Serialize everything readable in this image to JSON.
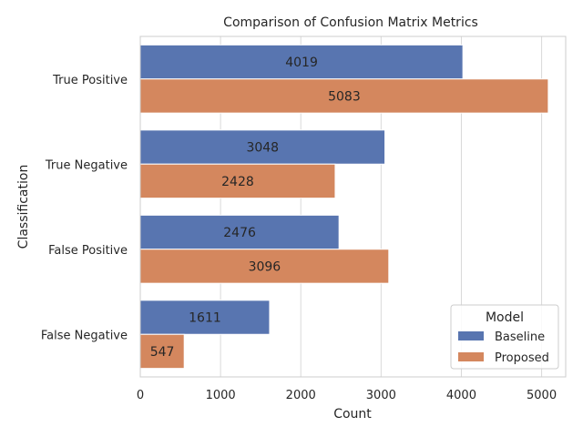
{
  "chart_data": {
    "type": "bar",
    "orientation": "horizontal",
    "title": "Comparison of Confusion Matrix Metrics",
    "xlabel": "Count",
    "ylabel": "Classification",
    "categories": [
      "True Positive",
      "True Negative",
      "False Positive",
      "False Negative"
    ],
    "series": [
      {
        "name": "Baseline",
        "color": "#5875b0",
        "values": [
          4019,
          3048,
          2476,
          1611
        ]
      },
      {
        "name": "Proposed",
        "color": "#d4875e",
        "values": [
          5083,
          2428,
          3096,
          547
        ]
      }
    ],
    "xlim": [
      0,
      5300
    ],
    "xticks": [
      0,
      1000,
      2000,
      3000,
      4000,
      5000
    ],
    "xtick_labels": [
      "0",
      "1000",
      "2000",
      "3000",
      "4000",
      "5000"
    ],
    "grid": true,
    "legend": {
      "title": "Model",
      "placement": "lower-right"
    }
  }
}
